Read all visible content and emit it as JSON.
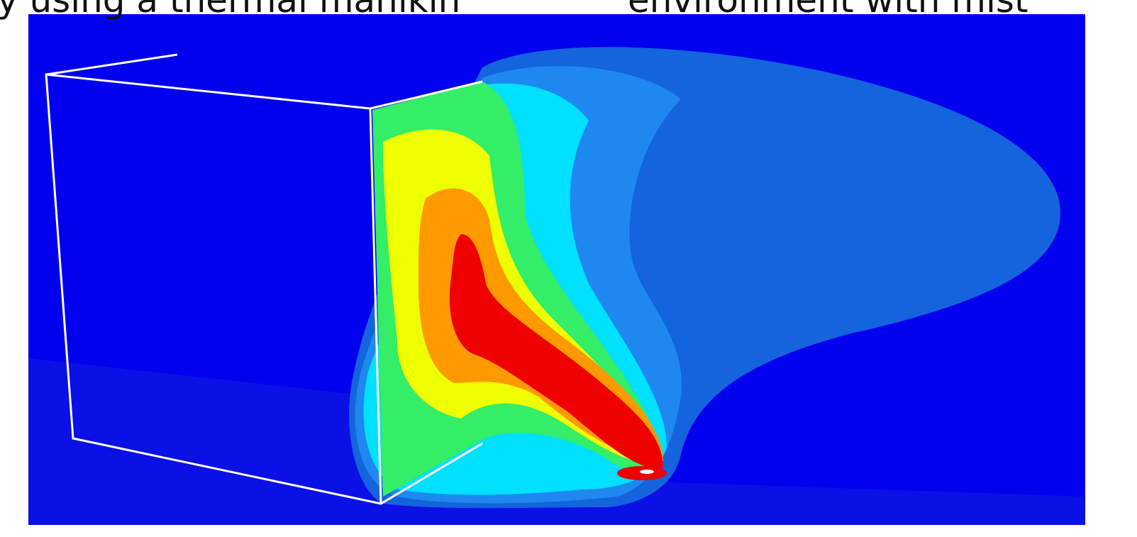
{
  "header": {
    "left_text": "y using a thermal manikin",
    "right_text": "environment with mist"
  }
}
